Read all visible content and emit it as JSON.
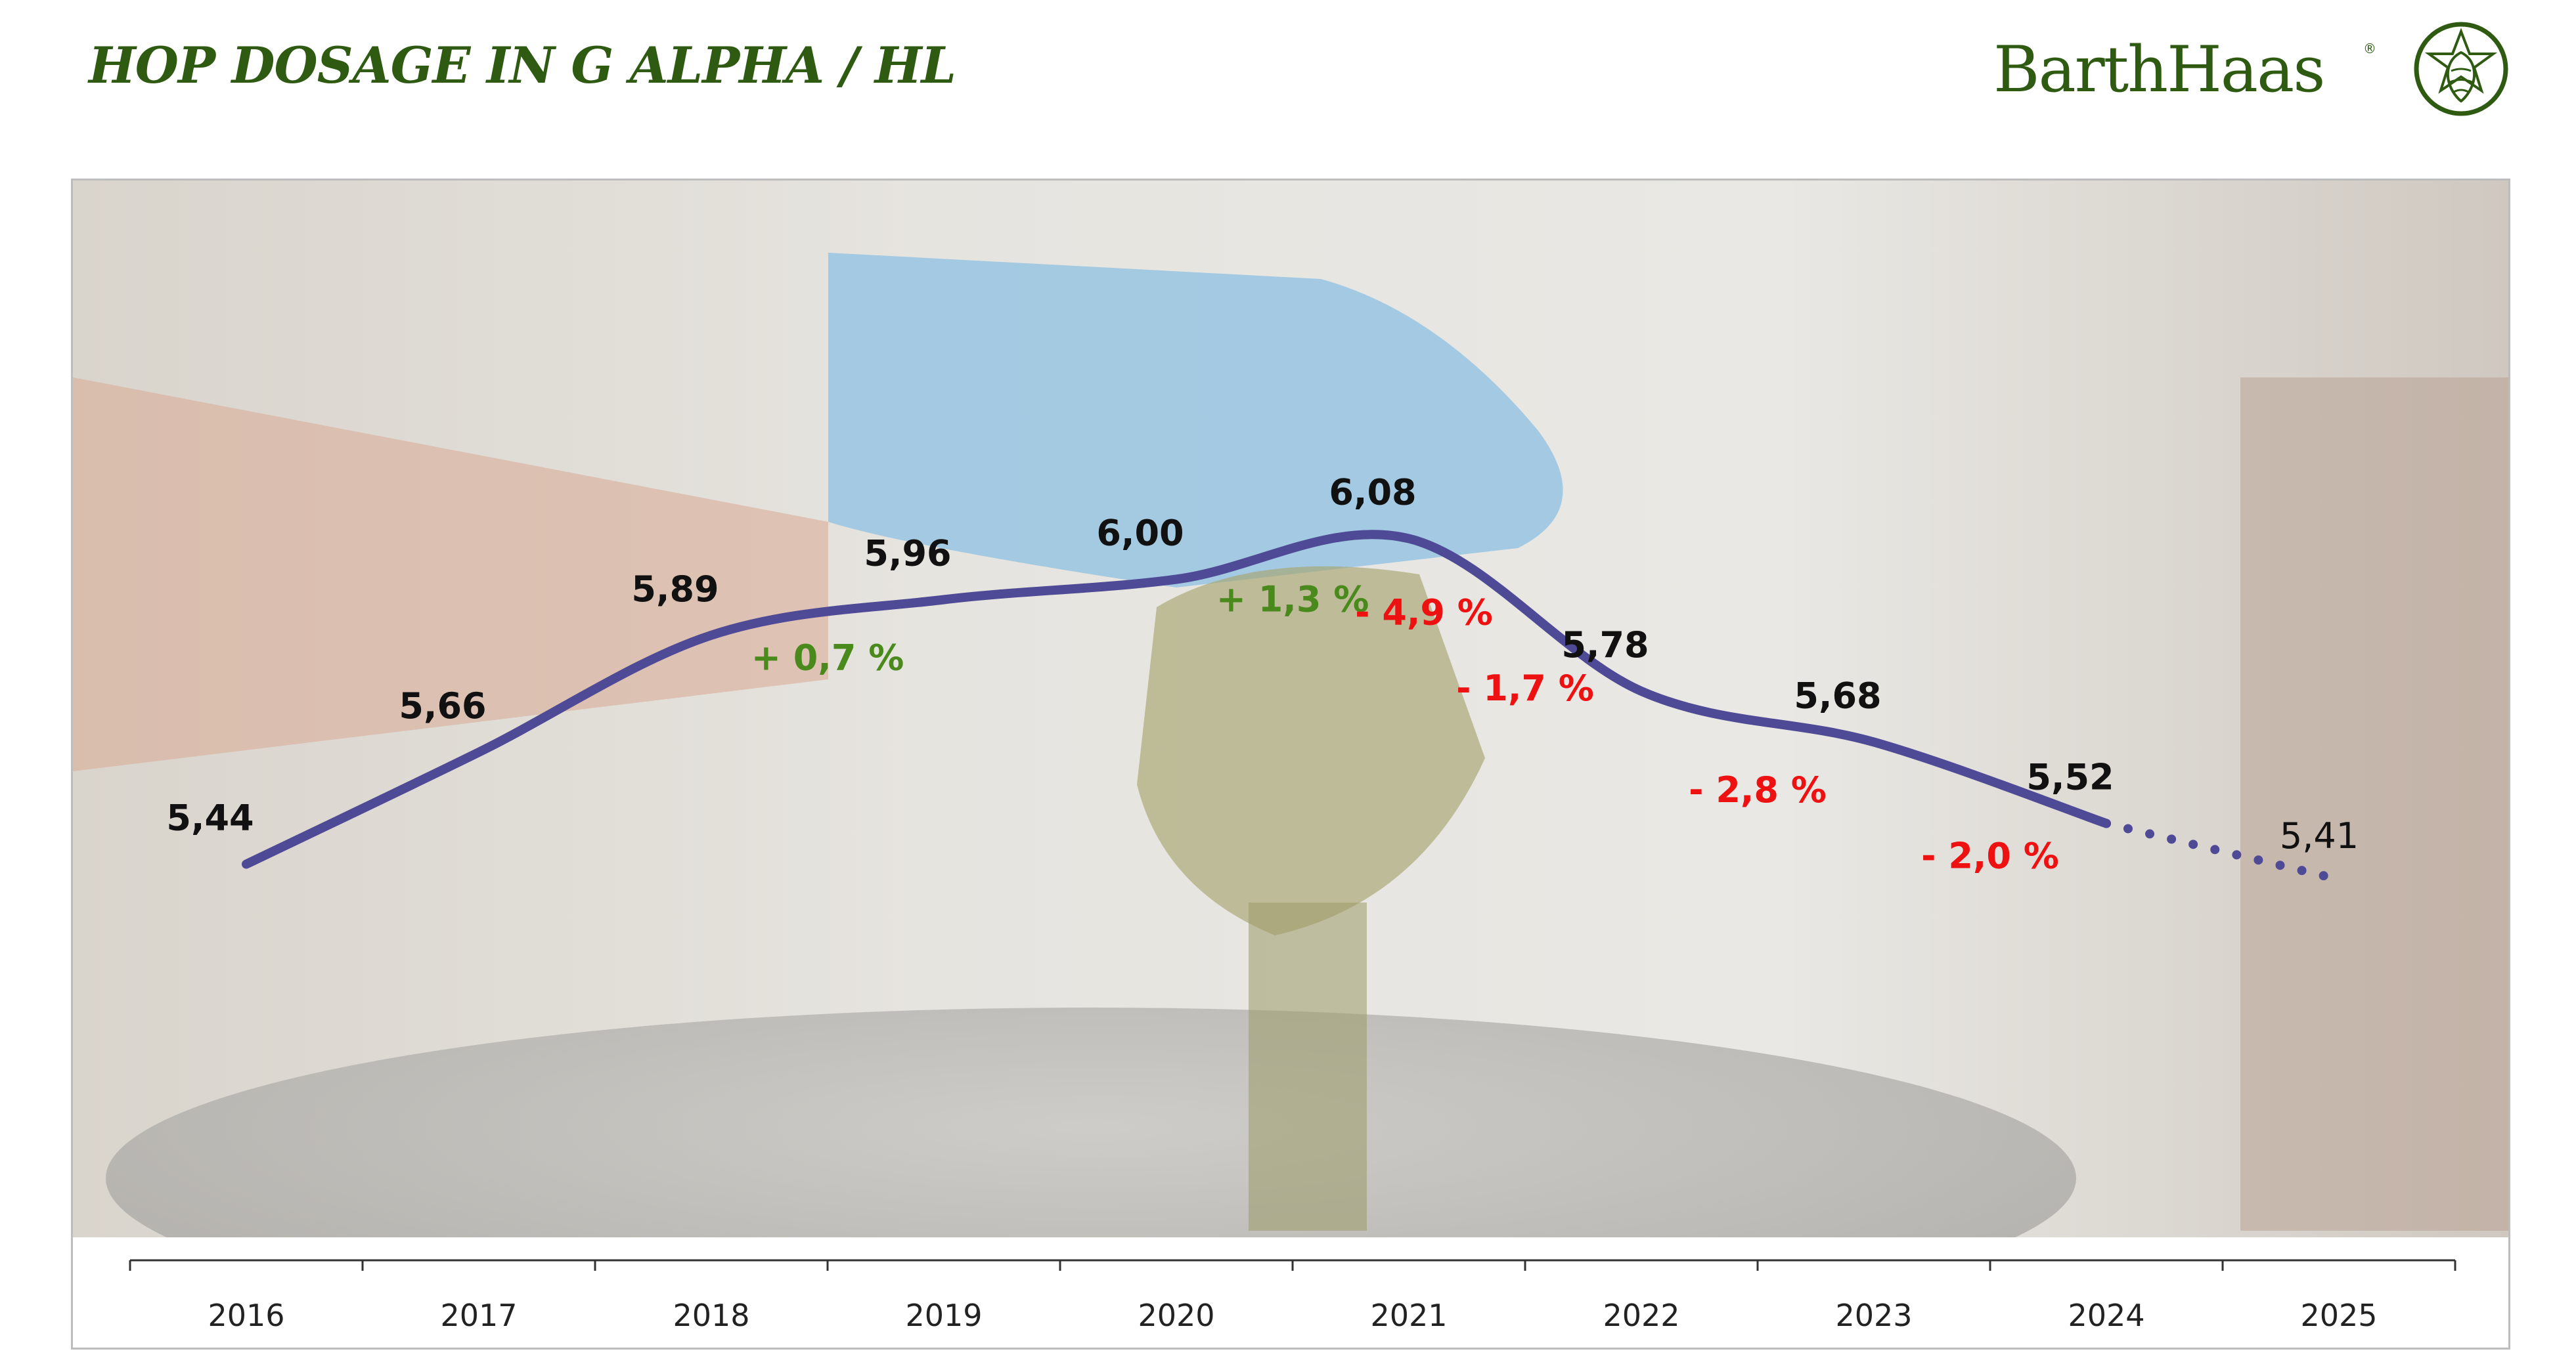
{
  "title": "HOP DOSAGE IN G ALPHA / HL",
  "logo": {
    "brand": "BarthHaas",
    "registered": "®"
  },
  "colors": {
    "title": "#2e5a12",
    "line": "#4f4a95",
    "label_dark": "#111111",
    "positive": "#4a8a1c",
    "negative": "#ee1111",
    "axis": "#333333"
  },
  "chart_data": {
    "type": "line",
    "title": "HOP DOSAGE IN G ALPHA / HL",
    "xlabel": "",
    "ylabel": "",
    "categories": [
      "2016",
      "2017",
      "2018",
      "2019",
      "2020",
      "2021",
      "2022",
      "2023",
      "2024",
      "2025"
    ],
    "values": [
      5.44,
      5.66,
      5.89,
      5.96,
      6.0,
      6.08,
      5.78,
      5.68,
      5.52,
      5.41
    ],
    "value_labels": [
      "5,44",
      "5,66",
      "5,89",
      "5,96",
      "6,00",
      "6,08",
      "5,78",
      "5,68",
      "5,52",
      "5,41"
    ],
    "forecast_from_index": 8,
    "forecast_style": "dotted",
    "changes": [
      {
        "between": [
          "2018",
          "2019"
        ],
        "label": "+ 0,7 %",
        "sign": "positive"
      },
      {
        "between": [
          "2020",
          "2021"
        ],
        "label": "+ 1,3 %",
        "sign": "positive"
      },
      {
        "between": [
          "2020",
          "2021"
        ],
        "label": "- 4,9 %",
        "sign": "negative"
      },
      {
        "between": [
          "2021",
          "2022"
        ],
        "label": "- 1,7 %",
        "sign": "negative"
      },
      {
        "between": [
          "2022",
          "2023"
        ],
        "label": "- 2,8 %",
        "sign": "negative"
      },
      {
        "between": [
          "2023",
          "2024"
        ],
        "label": "- 2,0 %",
        "sign": "negative"
      }
    ],
    "grid": false,
    "legend": "none",
    "background": "faded photo of hop pellets being poured from a glass into a brewing kettle"
  }
}
